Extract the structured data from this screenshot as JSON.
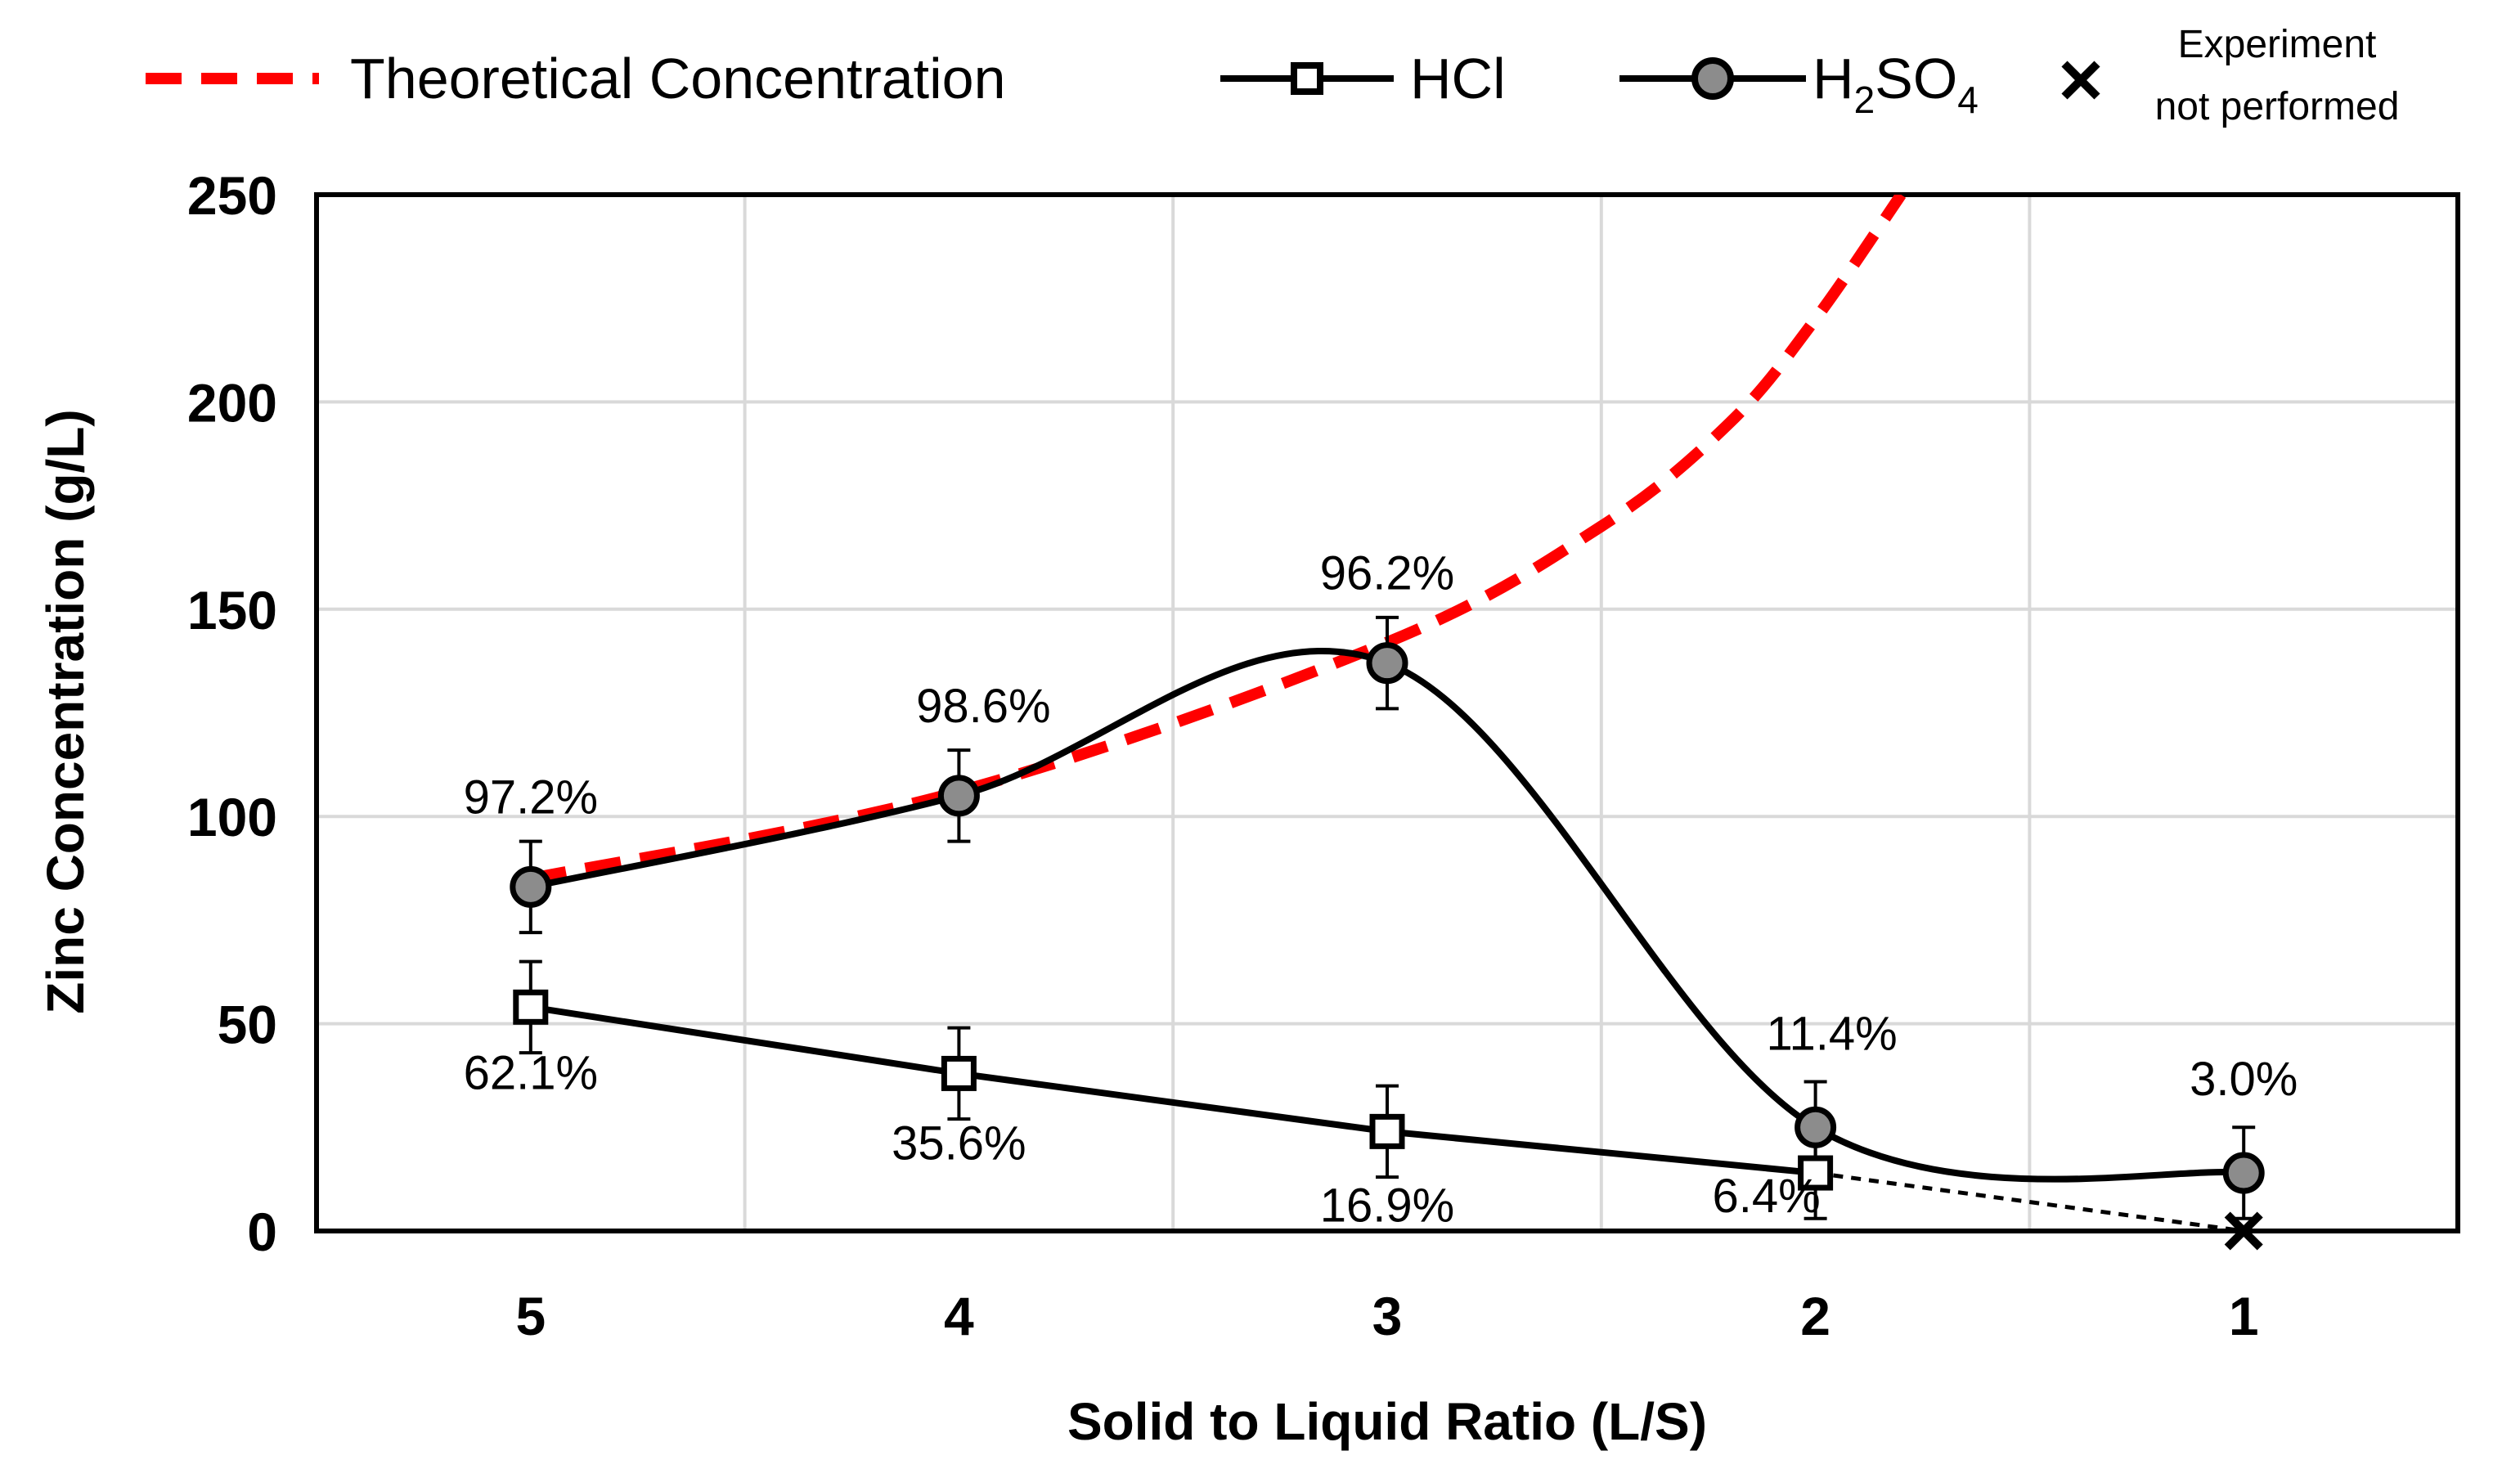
{
  "chart_data": {
    "type": "line",
    "title": "",
    "xlabel": "Solid to Liquid Ratio (L/S)",
    "ylabel": "Zinc Concentration (g/L)",
    "categories": [
      "5",
      "4",
      "3",
      "2",
      "1"
    ],
    "ylim": [
      0,
      250
    ],
    "yticks": [
      0,
      50,
      100,
      150,
      200,
      250
    ],
    "grid": true,
    "legend_position": "top",
    "colors": {
      "theoretical": "#ff0000",
      "series": "#000000",
      "gray_marker": "#8c8c8c",
      "grid": "#d9d9d9"
    },
    "series": [
      {
        "name": "Theoretical Concentration",
        "style": "dashed",
        "x": [
          5,
          4,
          3,
          2.5,
          2.2,
          2.0,
          1.8
        ],
        "values": [
          85,
          106,
          142,
          170,
          195,
          220,
          250
        ]
      },
      {
        "name": "HCl",
        "style": "solid-open-square",
        "values": [
          54,
          38,
          24,
          14,
          0
        ],
        "error": [
          11,
          11,
          11,
          11,
          0
        ],
        "labels": [
          "62.1%",
          "35.6%",
          "16.9%",
          "6.4%",
          ""
        ]
      },
      {
        "name": "H2SO4",
        "style": "solid-gray-circle",
        "values": [
          83,
          105,
          137,
          25,
          14
        ],
        "error": [
          11,
          11,
          11,
          11,
          11
        ],
        "labels": [
          "97.2%",
          "98.6%",
          "96.2%",
          "11.4%",
          "3.0%"
        ]
      }
    ],
    "not_performed": {
      "x": "1",
      "value": 0
    }
  },
  "legend": {
    "theoretical": "Theoretical Concentration",
    "hcl": "HCl",
    "h2so4_main": "H",
    "h2so4_sub1": "2",
    "h2so4_mid": "SO",
    "h2so4_sub2": "4",
    "not_performed_line1": "Experiment",
    "not_performed_line2": "not performed"
  }
}
